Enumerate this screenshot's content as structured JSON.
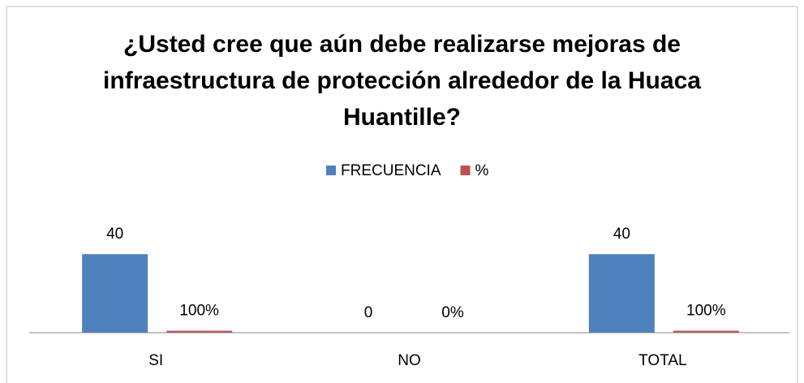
{
  "chart_data": {
    "type": "bar",
    "title": "¿Usted cree que aún debe realizarse mejoras de infraestructura de protección alrededor de la Huaca Huantille?",
    "categories": [
      "SI",
      "NO",
      "TOTAL"
    ],
    "series": [
      {
        "name": "FRECUENCIA",
        "color": "#4f81bd",
        "values": [
          40,
          0,
          40
        ]
      },
      {
        "name": "%",
        "color": "#c0504d",
        "values": [
          1,
          0,
          1
        ],
        "value_labels": [
          "100%",
          "0%",
          "100%"
        ]
      }
    ],
    "ylim": [
      0,
      50
    ],
    "legend": "top"
  }
}
